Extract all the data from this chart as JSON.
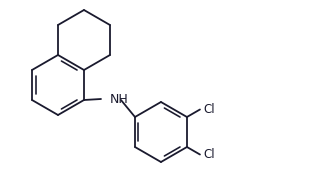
{
  "background_color": "#ffffff",
  "line_color": "#1a1a2e",
  "line_width": 1.3,
  "text_color": "#1a1a2e",
  "font_size": 8.5,
  "NH_label": "NH",
  "Cl1_label": "Cl",
  "Cl2_label": "Cl",
  "figsize": [
    3.14,
    1.8
  ],
  "dpi": 100
}
